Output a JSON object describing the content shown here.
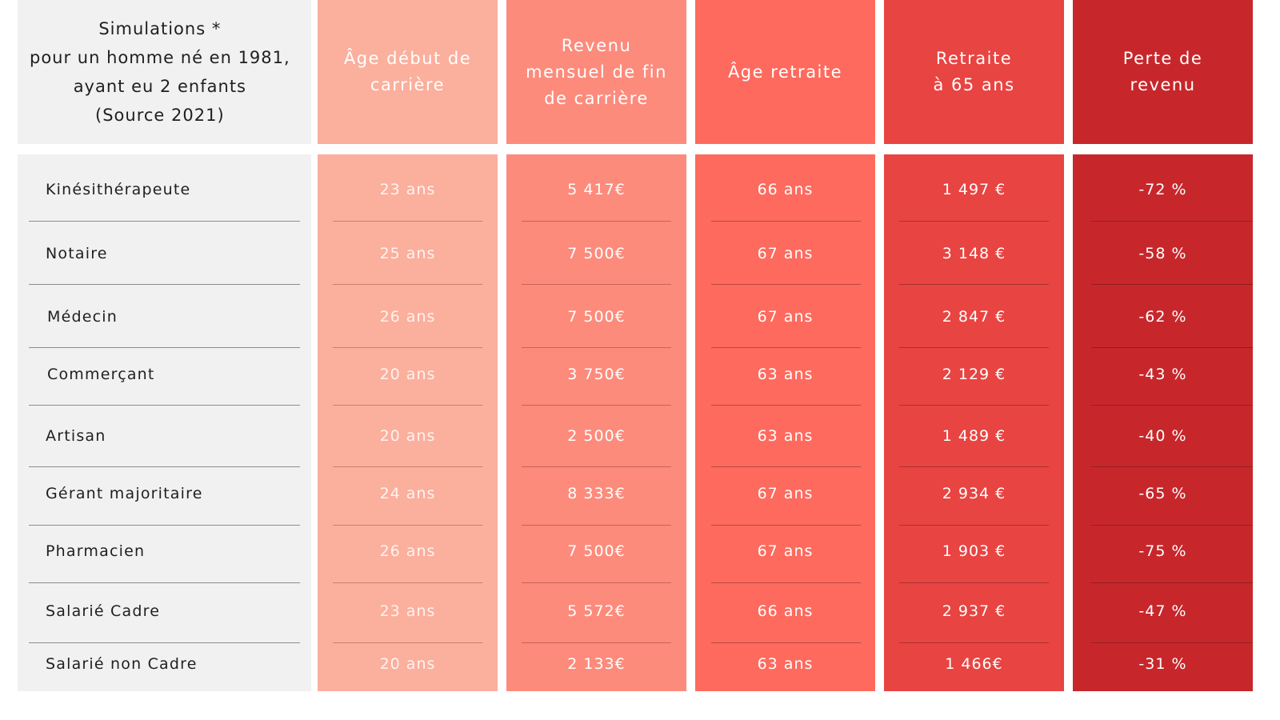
{
  "intro": {
    "lines": [
      "Simulations *",
      "pour un homme né en 1981,",
      "ayant eu 2 enfants",
      "(Source 2021)"
    ]
  },
  "headers": [
    {
      "lines": [
        "Âge début de",
        "carrière"
      ]
    },
    {
      "lines": [
        "Revenu",
        "mensuel de fin",
        "de carrière"
      ]
    },
    {
      "lines": [
        "Âge retraite"
      ]
    },
    {
      "lines": [
        "Retraite",
        "à 65 ans"
      ]
    },
    {
      "lines": [
        "Perte de",
        "revenu"
      ]
    }
  ],
  "rows": [
    {
      "profession": "Kinésithérapeute",
      "age_debut": "23 ans",
      "revenu": "5 417€",
      "age_retraite": "66 ans",
      "retraite": "1 497 €",
      "perte": "-72 %"
    },
    {
      "profession": "Notaire",
      "age_debut": "25 ans",
      "revenu": "7 500€",
      "age_retraite": "67 ans",
      "retraite": "3 148 €",
      "perte": "-58 %"
    },
    {
      "profession": "Médecin",
      "age_debut": "26 ans",
      "revenu": "7 500€",
      "age_retraite": "67 ans",
      "retraite": "2 847 €",
      "perte": "-62 %"
    },
    {
      "profession": "Commerçant",
      "age_debut": "20 ans",
      "revenu": "3 750€",
      "age_retraite": "63 ans",
      "retraite": "2 129 €",
      "perte": "-43 %"
    },
    {
      "profession": "Artisan",
      "age_debut": "20 ans",
      "revenu": "2 500€",
      "age_retraite": "63 ans",
      "retraite": "1 489 €",
      "perte": "-40 %"
    },
    {
      "profession": "Gérant majoritaire",
      "age_debut": "24 ans",
      "revenu": "8 333€",
      "age_retraite": "67 ans",
      "retraite": "2 934 €",
      "perte": "-65 %"
    },
    {
      "profession": "Pharmacien",
      "age_debut": "26 ans",
      "revenu": "7 500€",
      "age_retraite": "67 ans",
      "retraite": "1 903 €",
      "perte": "-75 %"
    },
    {
      "profession": "Salarié Cadre",
      "age_debut": "23 ans",
      "revenu": "5 572€",
      "age_retraite": "66 ans",
      "retraite": "2 937 €",
      "perte": "-47 %"
    },
    {
      "profession": "Salarié non Cadre",
      "age_debut": "20 ans",
      "revenu": "2 133€",
      "age_retraite": "63 ans",
      "retraite": "1 466€",
      "perte": "-31 %"
    }
  ],
  "colors": {
    "col_profession": "#f1f1f1",
    "col_age_debut": "#fbaf9d",
    "col_revenu": "#fd8b7c",
    "col_age_retraite": "#fe6a5d",
    "col_retraite": "#e84442",
    "col_perte": "#c7272b"
  }
}
